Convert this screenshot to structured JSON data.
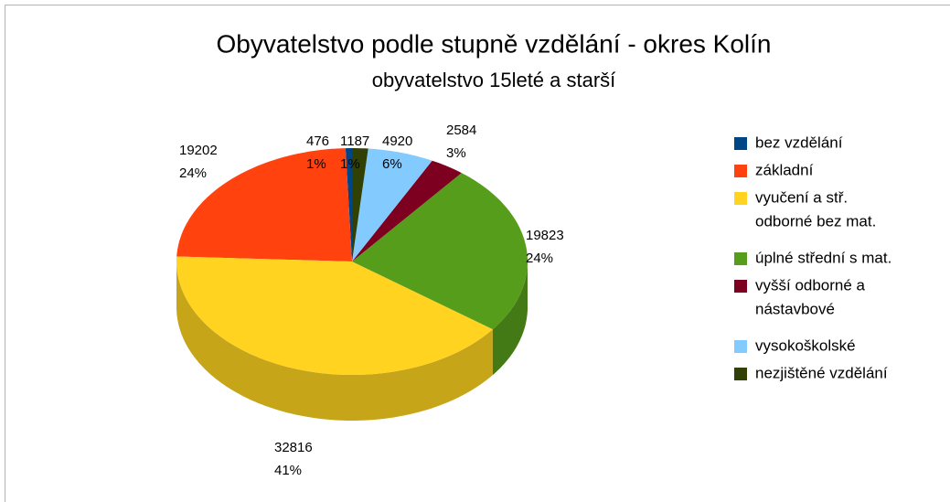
{
  "chart_data": {
    "type": "pie3d",
    "title": "Obyvatelstvo podle stupně vzdělání - okres Kolín",
    "subtitle": "obyvatelstvo 15leté a starší",
    "categories": [
      "bez vzdělání",
      "základní",
      "vyučení a stř. odborné bez mat.",
      "úplné střední s mat.",
      "vyšší odborné a nástavbové",
      "vysokoškolské",
      "nezjištěné vzdělání"
    ],
    "legend_lines": [
      [
        "bez vzdělání"
      ],
      [
        "základní"
      ],
      [
        "vyučení a stř.",
        "odborné bez mat."
      ],
      [
        "úplné střední s mat."
      ],
      [
        "vyšší odborné a",
        "nástavbové"
      ],
      [
        "vysokoškolské"
      ],
      [
        "nezjištěné vzdělání"
      ]
    ],
    "values": [
      476,
      19202,
      32816,
      19823,
      2584,
      4920,
      1187
    ],
    "percent_labels": [
      "1%",
      "24%",
      "41%",
      "24%",
      "3%",
      "6%",
      "1%"
    ],
    "colors": [
      "#004586",
      "#ff420e",
      "#ffd320",
      "#579d1c",
      "#7e0021",
      "#83caff",
      "#314004"
    ],
    "legend": "right"
  }
}
